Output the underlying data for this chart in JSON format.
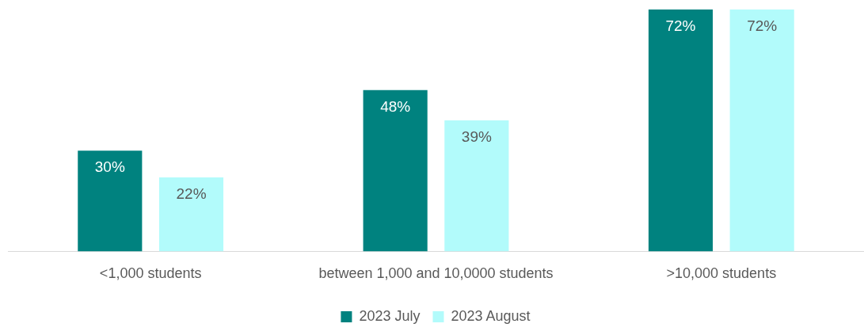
{
  "chart_data": {
    "type": "bar",
    "categories": [
      "<1,000 students",
      "between 1,000 and 10,0000 students",
      ">10,000 students"
    ],
    "series": [
      {
        "name": "2023 July",
        "color": "#00827f",
        "values": [
          30,
          48,
          72
        ],
        "value_labels": [
          "30%",
          "48%",
          "72%"
        ]
      },
      {
        "name": "2023 August",
        "color": "#b2fbfb",
        "values": [
          22,
          39,
          72
        ],
        "value_labels": [
          "22%",
          "39%",
          "72%"
        ]
      }
    ],
    "grid": false,
    "legend": "bottom",
    "tick_labels": "x"
  }
}
